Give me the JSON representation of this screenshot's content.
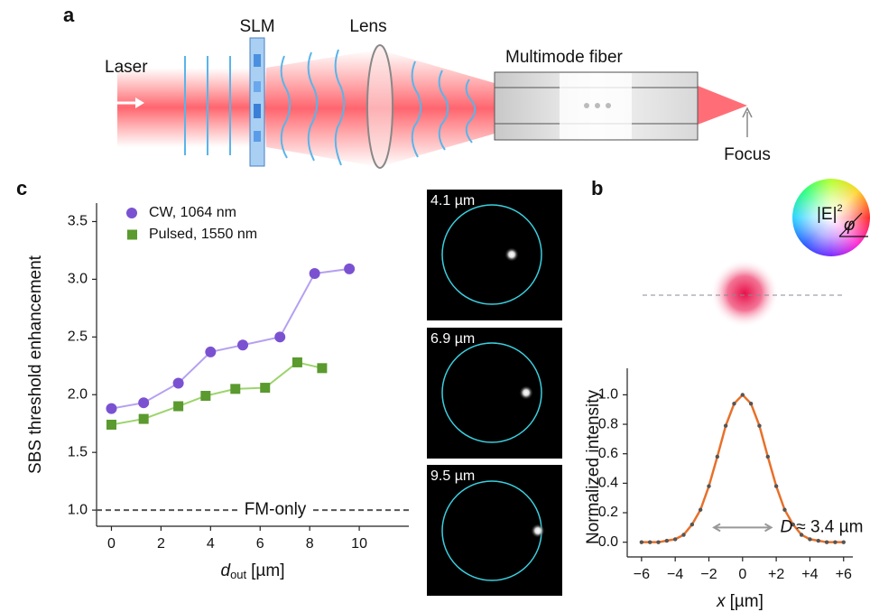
{
  "diagram": {
    "panel_label": "a",
    "slm": "SLM",
    "lens": "Lens",
    "laser": "Laser",
    "fiber": "Multimode fiber",
    "focus": "Focus"
  },
  "insets": {
    "labels": [
      "4.1 µm",
      "6.9 µm",
      "9.5 µm"
    ]
  },
  "field_map": {
    "base": "|E|",
    "superscript": "2",
    "angle": "φ"
  },
  "chart_data": [
    {
      "type": "line",
      "panel_label": "c",
      "x_label": {
        "symbol": "d",
        "subscript": "out",
        "unit": "[µm]"
      },
      "y_label": "SBS threshold enhancement",
      "xlim": [
        -0.6,
        12
      ],
      "ylim": [
        0.86,
        3.66
      ],
      "xticks": [
        0,
        2,
        4,
        6,
        8,
        10
      ],
      "yticks": [
        {
          "value": 1,
          "label": "1.0"
        },
        1.5,
        {
          "value": 2,
          "label": "2.0"
        },
        2.5,
        {
          "value": 3,
          "label": "3.0"
        },
        3.5
      ],
      "legend": "upper left",
      "reference_line": {
        "value": 1,
        "label": "FM-only"
      },
      "series": [
        {
          "name": "CW, 1064 nm",
          "color": "#7a52d1",
          "line_color": "#b5a0f0",
          "marker": "circle",
          "x": [
            0,
            1.3,
            2.7,
            4.0,
            5.3,
            6.8,
            8.2,
            9.6
          ],
          "values": [
            1.88,
            1.93,
            2.1,
            2.37,
            2.43,
            2.5,
            3.05,
            3.09
          ]
        },
        {
          "name": "Pulsed, 1550 nm",
          "color": "#5a9a2e",
          "line_color": "#9cd46c",
          "marker": "square",
          "x": [
            0,
            1.3,
            2.7,
            3.8,
            5.0,
            6.2,
            7.5,
            8.5
          ],
          "values": [
            1.74,
            1.79,
            1.9,
            1.99,
            2.05,
            2.06,
            2.28,
            2.23
          ]
        }
      ]
    },
    {
      "type": "line",
      "panel_label": "b",
      "x_label": {
        "symbol": "x",
        "unit": "[µm]"
      },
      "y_label": "Normalized intensity",
      "xlim": [
        -6.85,
        6.55
      ],
      "ylim": [
        -0.1,
        1.18
      ],
      "xticks": [
        {
          "value": -6,
          "label": "−6"
        },
        {
          "value": -4,
          "label": "−4"
        },
        {
          "value": -2,
          "label": "−2"
        },
        0,
        {
          "value": 2,
          "label": "+2"
        },
        {
          "value": 4,
          "label": "+4"
        },
        {
          "value": 6,
          "label": "+6"
        }
      ],
      "yticks": [
        {
          "value": 0,
          "label": "0.0"
        },
        0.2,
        0.4,
        0.6,
        0.8,
        {
          "value": 1,
          "label": "1.0"
        }
      ],
      "color": "#e8702a",
      "marker_color": "#555555",
      "x": [
        -6,
        -5.5,
        -5,
        -4.5,
        -4,
        -3.5,
        -3,
        -2.5,
        -2,
        -1.5,
        -1,
        -0.5,
        0,
        0.5,
        1,
        1.5,
        2,
        2.5,
        3,
        3.5,
        4,
        4.5,
        5,
        5.5,
        6
      ],
      "values": [
        0,
        0,
        0,
        0.01,
        0.02,
        0.05,
        0.12,
        0.22,
        0.38,
        0.58,
        0.79,
        0.94,
        1.0,
        0.94,
        0.79,
        0.58,
        0.38,
        0.22,
        0.12,
        0.05,
        0.02,
        0.01,
        0,
        0,
        0
      ],
      "annotation": {
        "symbol": "D",
        "text": "≈ 3.4 µm",
        "x": [
          -1.7,
          1.7
        ],
        "y": 0.1
      }
    }
  ]
}
